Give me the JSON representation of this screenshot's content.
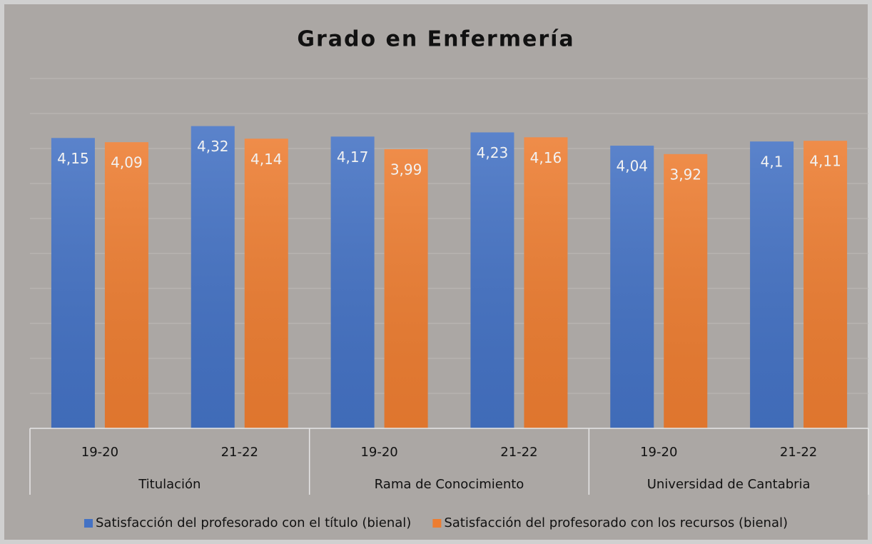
{
  "chart_data": {
    "type": "bar",
    "title": "Grado en Enfermería",
    "categories": [
      "19-20",
      "21-22",
      "19-20",
      "21-22",
      "19-20",
      "21-22"
    ],
    "groups": [
      {
        "label": "Titulación",
        "span": 2
      },
      {
        "label": "Rama de Conocimiento",
        "span": 2
      },
      {
        "label": "Universidad de Cantabria",
        "span": 2
      }
    ],
    "series": [
      {
        "name": "Satisfacción del profesorado con el título (bienal)",
        "color": "#4472c4",
        "values": [
          4.15,
          4.32,
          4.17,
          4.23,
          4.04,
          4.1
        ],
        "value_labels": [
          "4,15",
          "4,32",
          "4,17",
          "4,23",
          "4,04",
          "4,1"
        ]
      },
      {
        "name": "Satisfacción del profesorado con los recursos (bienal)",
        "color": "#ed7d31",
        "values": [
          4.09,
          4.14,
          3.99,
          4.16,
          3.92,
          4.11
        ],
        "value_labels": [
          "4,09",
          "4,14",
          "3,99",
          "4,16",
          "3,92",
          "4,11"
        ]
      }
    ],
    "ylim": [
      0,
      5
    ],
    "yticks": [
      0,
      0.5,
      1,
      1.5,
      2,
      2.5,
      3,
      3.5,
      4,
      4.5,
      5
    ],
    "grid": true,
    "legend": "bottom"
  }
}
